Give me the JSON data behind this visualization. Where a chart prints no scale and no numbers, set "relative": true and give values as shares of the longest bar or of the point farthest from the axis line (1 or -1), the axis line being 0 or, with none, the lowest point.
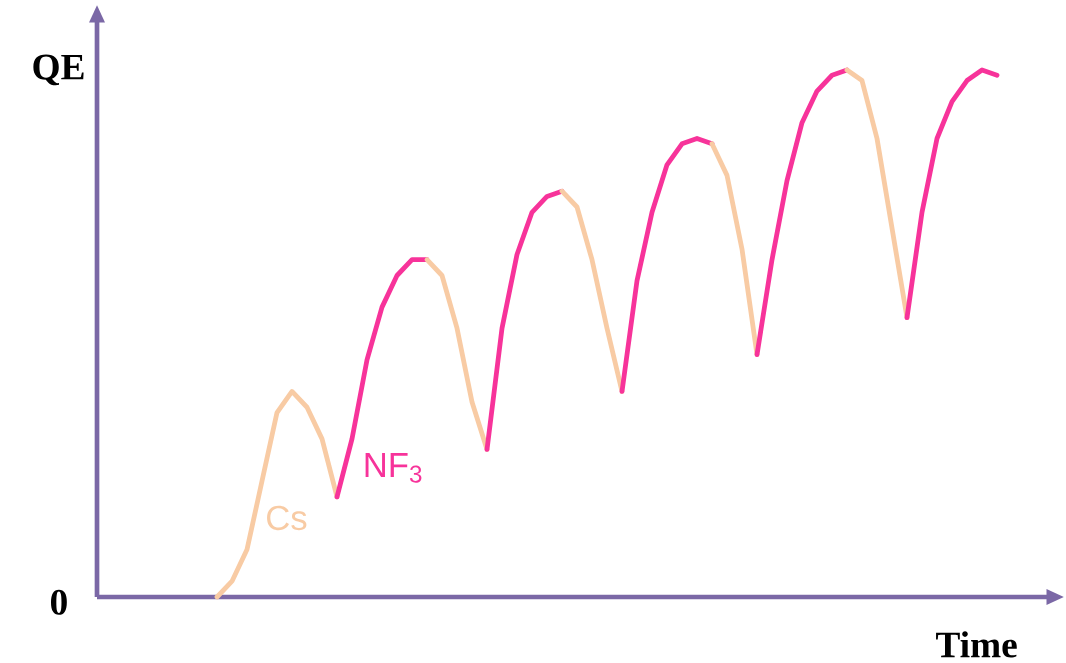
{
  "chart_data": {
    "type": "line",
    "relative": true,
    "xlabel": "Time",
    "ylabel": "QE",
    "annotations": [
      "0"
    ],
    "categories": [
      null,
      null,
      null,
      null,
      null,
      null,
      null,
      null,
      null,
      null,
      null,
      null,
      null,
      null,
      null,
      null,
      null,
      null,
      null,
      null,
      null,
      null,
      null,
      null,
      null,
      null,
      null,
      null,
      null,
      null,
      null,
      null,
      null,
      null,
      null,
      null,
      null,
      null,
      null,
      null,
      null,
      null,
      null,
      null,
      null,
      null,
      null,
      null,
      null,
      null,
      null,
      null,
      null,
      null,
      null,
      null,
      null,
      null,
      null,
      null,
      null
    ],
    "series": [
      {
        "name": "Cs",
        "color": "#f8cba4",
        "values": [
          null,
          null,
          null,
          null,
          null,
          null,
          null,
          null,
          0,
          0.03,
          0.09,
          0.22,
          0.35,
          0.39,
          0.36,
          0.3,
          0.19,
          null,
          null,
          null,
          null,
          null,
          null,
          null,
          null,
          null,
          null,
          null,
          null,
          null,
          null,
          null,
          null,
          null,
          null,
          null,
          null,
          null,
          null,
          null,
          null,
          null,
          null,
          null,
          null,
          null,
          null,
          null,
          null,
          null,
          null,
          null,
          null,
          null,
          null,
          null,
          null,
          null,
          null,
          null,
          null
        ]
      },
      {
        "name": "NF$_{3}$",
        "color": "#f7339a",
        "values": [
          null,
          null,
          null,
          null,
          null,
          null,
          null,
          null,
          null,
          null,
          null,
          null,
          null,
          null,
          null,
          null,
          0.19,
          0.3,
          0.45,
          0.55,
          0.61,
          0.64,
          0.64,
          null,
          null,
          null,
          null,
          null,
          null,
          null,
          null,
          null,
          null,
          null,
          null,
          null,
          null,
          null,
          null,
          null,
          null,
          null,
          null,
          null,
          null,
          null,
          null,
          null,
          null,
          null,
          null,
          null,
          null,
          null,
          null,
          null,
          null,
          null,
          null,
          null,
          null
        ]
      },
      {
        "color": "#f8cba4",
        "values": [
          null,
          null,
          null,
          null,
          null,
          null,
          null,
          null,
          null,
          null,
          null,
          null,
          null,
          null,
          null,
          null,
          null,
          null,
          null,
          null,
          null,
          null,
          0.64,
          0.61,
          0.51,
          0.37,
          0.28,
          null,
          null,
          null,
          null,
          null,
          null,
          null,
          null,
          null,
          null,
          null,
          null,
          null,
          null,
          null,
          null,
          null,
          null,
          null,
          null,
          null,
          null,
          null,
          null,
          null,
          null,
          null,
          null,
          null,
          null,
          null,
          null,
          null,
          null
        ]
      },
      {
        "color": "#f7339a",
        "values": [
          null,
          null,
          null,
          null,
          null,
          null,
          null,
          null,
          null,
          null,
          null,
          null,
          null,
          null,
          null,
          null,
          null,
          null,
          null,
          null,
          null,
          null,
          null,
          null,
          null,
          null,
          0.28,
          0.51,
          0.65,
          0.73,
          0.76,
          0.77,
          null,
          null,
          null,
          null,
          null,
          null,
          null,
          null,
          null,
          null,
          null,
          null,
          null,
          null,
          null,
          null,
          null,
          null,
          null,
          null,
          null,
          null,
          null,
          null,
          null,
          null,
          null,
          null,
          null
        ]
      },
      {
        "color": "#f8cba4",
        "values": [
          null,
          null,
          null,
          null,
          null,
          null,
          null,
          null,
          null,
          null,
          null,
          null,
          null,
          null,
          null,
          null,
          null,
          null,
          null,
          null,
          null,
          null,
          null,
          null,
          null,
          null,
          null,
          null,
          null,
          null,
          null,
          0.77,
          0.74,
          0.64,
          0.51,
          0.39,
          null,
          null,
          null,
          null,
          null,
          null,
          null,
          null,
          null,
          null,
          null,
          null,
          null,
          null,
          null,
          null,
          null,
          null,
          null,
          null,
          null,
          null,
          null,
          null,
          null
        ]
      },
      {
        "color": "#f7339a",
        "values": [
          null,
          null,
          null,
          null,
          null,
          null,
          null,
          null,
          null,
          null,
          null,
          null,
          null,
          null,
          null,
          null,
          null,
          null,
          null,
          null,
          null,
          null,
          null,
          null,
          null,
          null,
          null,
          null,
          null,
          null,
          null,
          null,
          null,
          null,
          null,
          0.39,
          0.6,
          0.73,
          0.82,
          0.86,
          0.87,
          0.86,
          null,
          null,
          null,
          null,
          null,
          null,
          null,
          null,
          null,
          null,
          null,
          null,
          null,
          null,
          null,
          null,
          null,
          null,
          null
        ]
      },
      {
        "color": "#f8cba4",
        "values": [
          null,
          null,
          null,
          null,
          null,
          null,
          null,
          null,
          null,
          null,
          null,
          null,
          null,
          null,
          null,
          null,
          null,
          null,
          null,
          null,
          null,
          null,
          null,
          null,
          null,
          null,
          null,
          null,
          null,
          null,
          null,
          null,
          null,
          null,
          null,
          null,
          null,
          null,
          null,
          null,
          null,
          0.86,
          0.8,
          0.66,
          0.46,
          null,
          null,
          null,
          null,
          null,
          null,
          null,
          null,
          null,
          null,
          null,
          null,
          null,
          null,
          null,
          null
        ]
      },
      {
        "color": "#f7339a",
        "values": [
          null,
          null,
          null,
          null,
          null,
          null,
          null,
          null,
          null,
          null,
          null,
          null,
          null,
          null,
          null,
          null,
          null,
          null,
          null,
          null,
          null,
          null,
          null,
          null,
          null,
          null,
          null,
          null,
          null,
          null,
          null,
          null,
          null,
          null,
          null,
          null,
          null,
          null,
          null,
          null,
          null,
          null,
          null,
          null,
          0.46,
          0.64,
          0.79,
          0.9,
          0.96,
          0.99,
          1,
          null,
          null,
          null,
          null,
          null,
          null,
          null,
          null,
          null,
          null
        ]
      },
      {
        "color": "#f8cba4",
        "values": [
          null,
          null,
          null,
          null,
          null,
          null,
          null,
          null,
          null,
          null,
          null,
          null,
          null,
          null,
          null,
          null,
          null,
          null,
          null,
          null,
          null,
          null,
          null,
          null,
          null,
          null,
          null,
          null,
          null,
          null,
          null,
          null,
          null,
          null,
          null,
          null,
          null,
          null,
          null,
          null,
          null,
          null,
          null,
          null,
          null,
          null,
          null,
          null,
          null,
          null,
          1,
          0.98,
          0.87,
          0.7,
          0.53,
          null,
          null,
          null,
          null,
          null,
          null
        ]
      },
      {
        "color": "#f7339a",
        "values": [
          null,
          null,
          null,
          null,
          null,
          null,
          null,
          null,
          null,
          null,
          null,
          null,
          null,
          null,
          null,
          null,
          null,
          null,
          null,
          null,
          null,
          null,
          null,
          null,
          null,
          null,
          null,
          null,
          null,
          null,
          null,
          null,
          null,
          null,
          null,
          null,
          null,
          null,
          null,
          null,
          null,
          null,
          null,
          null,
          null,
          null,
          null,
          null,
          null,
          null,
          null,
          null,
          null,
          null,
          0.53,
          0.73,
          0.87,
          0.94,
          0.98,
          1,
          0.99
        ]
      }
    ]
  }
}
